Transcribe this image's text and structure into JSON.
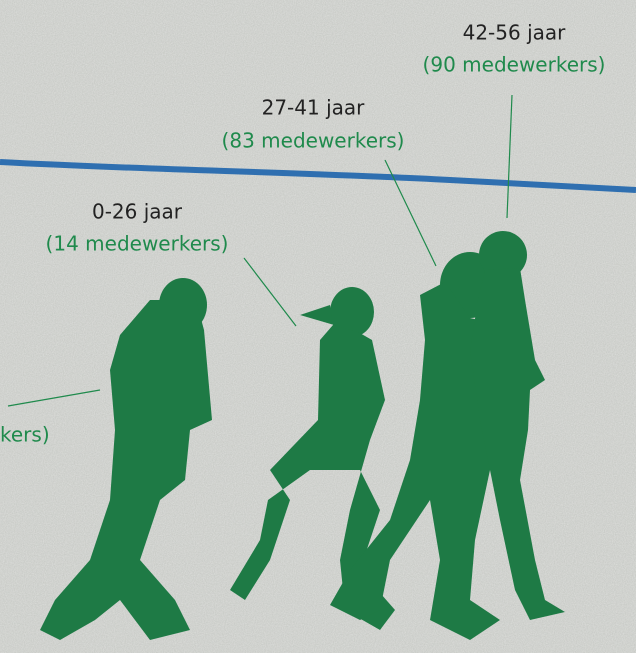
{
  "labels": [
    {
      "age": "42-56 jaar",
      "count": "(90 medewerkers)"
    },
    {
      "age": "27-41 jaar",
      "count": "(83 medewerkers)"
    },
    {
      "age": "0-26 jaar",
      "count": "(14 medewerkers)"
    }
  ],
  "cut_label": "kers)"
}
